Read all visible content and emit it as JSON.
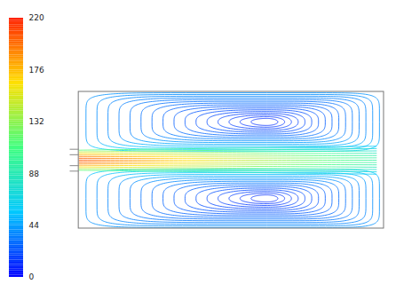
{
  "chart_data": {
    "type": "streamlines",
    "colorbar": {
      "range": [
        0,
        220
      ],
      "ticks": [
        0,
        44,
        88,
        132,
        176,
        220
      ]
    },
    "jet": {
      "peak_speed": 205,
      "end_speed": 95
    },
    "recirculation_speed": 25,
    "vortices": 2
  }
}
